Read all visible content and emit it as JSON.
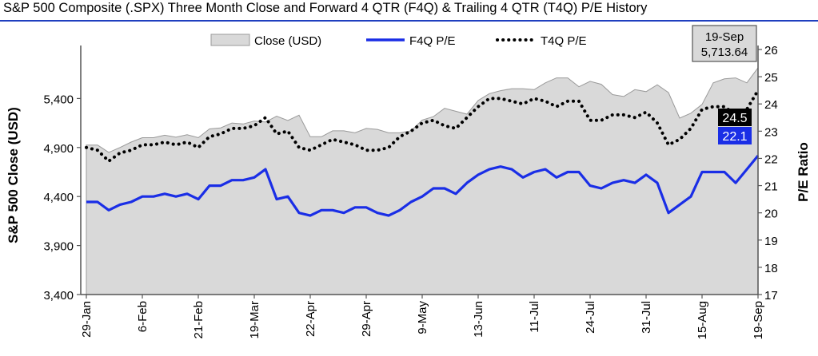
{
  "title": "S&P 500 Composite (.SPX) Three Month Close and Forward 4 QTR (F4Q) & Trailing 4 QTR (T4Q) P/E History",
  "colors": {
    "area": "#d9d9d9",
    "area_edge": "#9a9a9a",
    "f4q": "#1a2ee6",
    "t4q": "#000000",
    "title_rule": "#1f3fbf"
  },
  "callout": {
    "date": "19-Sep",
    "close": "5,713.64",
    "t4q": "24.5",
    "f4q": "22.1"
  },
  "chart_data": {
    "type": "area+line",
    "ylabel": "S&P 500 Close (USD)",
    "y2label": "P/E Ratio",
    "ylim": [
      3400,
      5900
    ],
    "y2lim": [
      17,
      26
    ],
    "yticks": [
      "3,400",
      "3,900",
      "4,400",
      "4,900",
      "5,400"
    ],
    "ytick_values": [
      3400,
      3900,
      4400,
      4900,
      5400
    ],
    "y2ticks": [
      "17",
      "18",
      "19",
      "20",
      "21",
      "22",
      "23",
      "24",
      "25",
      "26"
    ],
    "y2tick_values": [
      17,
      18,
      19,
      20,
      21,
      22,
      23,
      24,
      25,
      26
    ],
    "xticks": [
      "29-Jan",
      "6-Feb",
      "21-Feb",
      "19-Mar",
      "22-Apr",
      "29-Apr",
      "9-May",
      "13-Jun",
      "11-Jul",
      "24-Jul",
      "31-Jul",
      "15-Aug",
      "19-Sep"
    ],
    "xtick_index": [
      0,
      5,
      10,
      15,
      20,
      25,
      30,
      35,
      40,
      45,
      50,
      55,
      60
    ],
    "legend": [
      "Close (USD)",
      "F4Q P/E",
      "T4Q P/E"
    ],
    "legend_position": "top",
    "series": [
      {
        "name": "Close (USD)",
        "type": "area",
        "values": [
          4925,
          4925,
          4850,
          4900,
          4955,
          5000,
          5000,
          5025,
          5005,
          5030,
          5000,
          5090,
          5100,
          5150,
          5140,
          5170,
          5160,
          5220,
          5175,
          5230,
          5010,
          5010,
          5070,
          5070,
          5050,
          5095,
          5085,
          5050,
          5050,
          5070,
          5180,
          5215,
          5300,
          5270,
          5240,
          5380,
          5450,
          5480,
          5500,
          5500,
          5490,
          5560,
          5610,
          5610,
          5520,
          5575,
          5545,
          5440,
          5420,
          5490,
          5470,
          5540,
          5460,
          5200,
          5250,
          5340,
          5560,
          5600,
          5610,
          5560,
          5713.64
        ]
      },
      {
        "name": "F4Q P/E",
        "type": "line",
        "values": [
          20.4,
          20.4,
          20.1,
          20.3,
          20.4,
          20.6,
          20.6,
          20.7,
          20.6,
          20.7,
          20.5,
          21.0,
          21.0,
          21.2,
          21.2,
          21.3,
          21.6,
          20.5,
          20.6,
          20.0,
          19.9,
          20.1,
          20.1,
          20.0,
          20.2,
          20.2,
          20.0,
          19.9,
          20.1,
          20.4,
          20.6,
          20.9,
          20.9,
          20.7,
          21.1,
          21.4,
          21.6,
          21.7,
          21.6,
          21.3,
          21.5,
          21.6,
          21.3,
          21.5,
          21.5,
          21.0,
          20.9,
          21.1,
          21.2,
          21.1,
          21.4,
          21.1,
          20.0,
          20.3,
          20.6,
          21.5,
          21.5,
          21.5,
          21.1,
          21.6,
          22.1
        ]
      },
      {
        "name": "T4Q P/E",
        "type": "line",
        "values": [
          22.4,
          22.3,
          21.9,
          22.2,
          22.3,
          22.5,
          22.5,
          22.6,
          22.5,
          22.6,
          22.4,
          22.8,
          22.9,
          23.1,
          23.1,
          23.2,
          23.5,
          22.9,
          23.0,
          22.4,
          22.3,
          22.5,
          22.7,
          22.6,
          22.5,
          22.3,
          22.3,
          22.4,
          22.8,
          23.0,
          23.3,
          23.4,
          23.2,
          23.1,
          23.5,
          23.9,
          24.2,
          24.2,
          24.1,
          24.0,
          24.2,
          24.1,
          23.9,
          24.1,
          24.1,
          23.4,
          23.4,
          23.6,
          23.6,
          23.5,
          23.7,
          23.3,
          22.5,
          22.7,
          23.1,
          23.8,
          23.9,
          23.9,
          23.6,
          23.8,
          24.5
        ]
      }
    ]
  }
}
